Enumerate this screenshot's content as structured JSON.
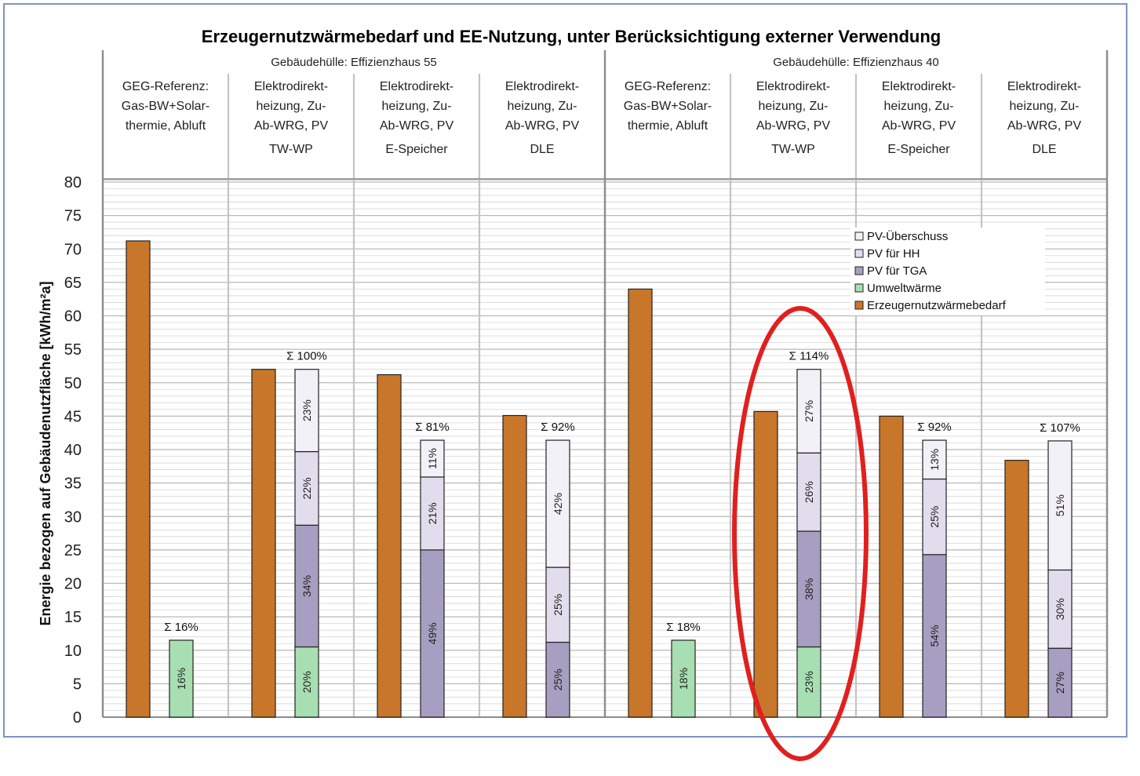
{
  "chart_data": {
    "type": "bar",
    "title": "Erzeugernutzwärmebedarf und EE-Nutzung, unter Berücksichtigung externer Verwendung",
    "ylabel": "Energie bezogen auf Gebäudenutzfläche [kWh/m²a]",
    "xlabel": "",
    "ylim": [
      0,
      80
    ],
    "yticks": [
      0,
      5,
      10,
      15,
      20,
      25,
      30,
      35,
      40,
      45,
      50,
      55,
      60,
      65,
      70,
      75,
      80
    ],
    "grid": true,
    "legend_position": "top-right",
    "groups": [
      {
        "label": "Gebäudehülle: Effizienzhaus 55"
      },
      {
        "label": "Gebäudehülle: Effizienzhaus 40"
      }
    ],
    "categories": [
      [
        "GEG-Referenz:",
        "Gas-BW+Solar-",
        "thermie, Abluft",
        ""
      ],
      [
        "Elektrodirekt-",
        "heizung, Zu-",
        "Ab-WRG, PV",
        "TW-WP"
      ],
      [
        "Elektrodirekt-",
        "heizung, Zu-",
        "Ab-WRG, PV",
        "E-Speicher"
      ],
      [
        "Elektrodirekt-",
        "heizung, Zu-",
        "Ab-WRG, PV",
        "DLE"
      ],
      [
        "GEG-Referenz:",
        "Gas-BW+Solar-",
        "thermie, Abluft",
        ""
      ],
      [
        "Elektrodirekt-",
        "heizung, Zu-",
        "Ab-WRG, PV",
        "TW-WP"
      ],
      [
        "Elektrodirekt-",
        "heizung, Zu-",
        "Ab-WRG, PV",
        "E-Speicher"
      ],
      [
        "Elektrodirekt-",
        "heizung, Zu-",
        "Ab-WRG, PV",
        "DLE"
      ]
    ],
    "legend": [
      "PV-Überschuss",
      "PV für HH",
      "PV für TGA",
      "Umweltwärme",
      "Erzeugernutzwärmebedarf"
    ],
    "colors": {
      "pv_ueberschuss": "#f3f1f8",
      "pv_hh": "#e2ddec",
      "pv_tga": "#a79fc1",
      "umweltwaerme": "#a8dfb2",
      "erzeuger": "#c8762a",
      "highlight": "#e0201e",
      "grid": "#c8c8c8",
      "axis": "#8c8c8c"
    },
    "series": [
      {
        "name": "Erzeugernutzwärmebedarf",
        "values": [
          71.2,
          52.0,
          51.2,
          45.1,
          64.0,
          45.7,
          45.0,
          38.4
        ]
      },
      {
        "name": "Umweltwärme",
        "values": [
          11.5,
          10.5,
          0,
          0,
          11.5,
          10.5,
          0,
          0
        ]
      },
      {
        "name": "PV für TGA",
        "values": [
          0,
          18.2,
          25.0,
          11.2,
          0,
          17.3,
          24.3,
          10.3
        ]
      },
      {
        "name": "PV für HH",
        "values": [
          0,
          11.0,
          10.9,
          11.2,
          0,
          11.7,
          11.3,
          11.7
        ]
      },
      {
        "name": "PV-Überschuss",
        "values": [
          0,
          12.3,
          5.5,
          19.0,
          0,
          12.5,
          5.8,
          19.3
        ]
      }
    ],
    "segment_labels": [
      [
        "16%",
        "",
        "",
        ""
      ],
      [
        "20%",
        "34%",
        "22%",
        "23%"
      ],
      [
        "",
        "49%",
        "21%",
        "11%"
      ],
      [
        "",
        "25%",
        "25%",
        "42%"
      ],
      [
        "18%",
        "",
        "",
        ""
      ],
      [
        "23%",
        "38%",
        "26%",
        "27%"
      ],
      [
        "",
        "54%",
        "25%",
        "13%"
      ],
      [
        "",
        "27%",
        "30%",
        "51%"
      ]
    ],
    "sum_labels": [
      "Σ 16%",
      "Σ 100%",
      "Σ 81%",
      "Σ 92%",
      "Σ 18%",
      "Σ 114%",
      "Σ 92%",
      "Σ 107%"
    ],
    "annotation": "highlighted-category-6"
  }
}
